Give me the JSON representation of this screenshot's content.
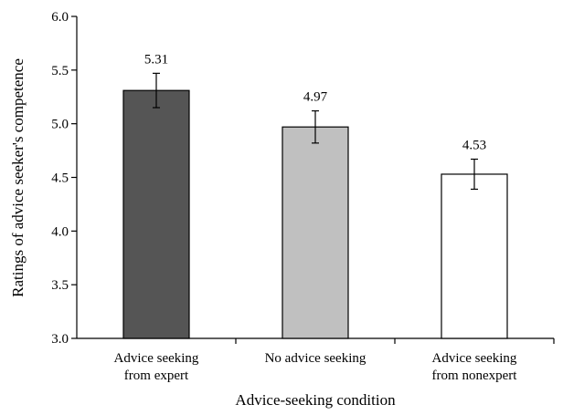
{
  "chart_data": {
    "type": "bar",
    "title": "",
    "xlabel": "Advice-seeking condition",
    "ylabel": "Ratings of advice seeker's competence",
    "ylim": [
      3.0,
      6.0
    ],
    "yticks": [
      "3.0",
      "3.5",
      "4.0",
      "4.5",
      "5.0",
      "5.5",
      "6.0"
    ],
    "grid": false,
    "categories": [
      [
        "Advice seeking",
        "from expert"
      ],
      [
        "No advice seeking"
      ],
      [
        "Advice seeking",
        "from nonexpert"
      ]
    ],
    "values": [
      5.31,
      4.97,
      4.53
    ],
    "value_labels": [
      "5.31",
      "4.97",
      "4.53"
    ],
    "error": [
      0.16,
      0.15,
      0.14
    ],
    "bar_colors": [
      "#555555",
      "#c0c0c0",
      "#ffffff"
    ]
  }
}
